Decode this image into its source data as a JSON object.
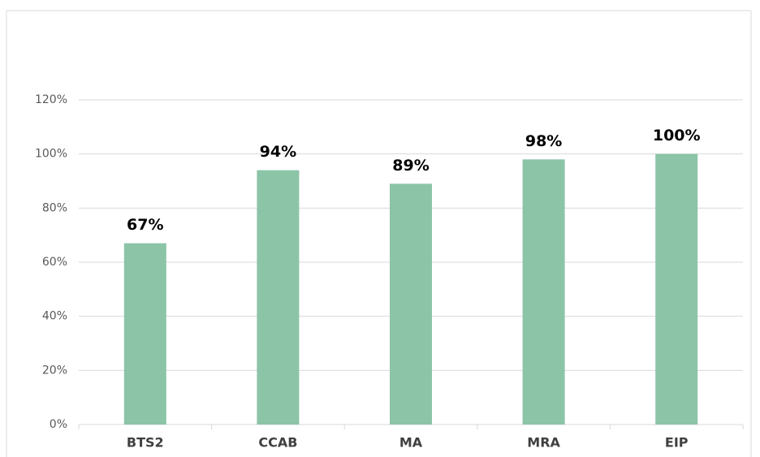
{
  "chart_data": {
    "type": "bar",
    "categories": [
      "BTS2",
      "CCAB",
      "MA",
      "MRA",
      "EIP"
    ],
    "values": [
      67,
      94,
      89,
      98,
      100
    ],
    "value_labels": [
      "67%",
      "94%",
      "89%",
      "98%",
      "100%"
    ],
    "color": "#8cc4a7",
    "ylim": [
      0,
      120
    ],
    "yticks": [
      {
        "value": 0,
        "label": "0%"
      },
      {
        "value": 20,
        "label": "20%"
      },
      {
        "value": 40,
        "label": "40%"
      },
      {
        "value": 60,
        "label": "60%"
      },
      {
        "value": 80,
        "label": "80%"
      },
      {
        "value": 100,
        "label": "100%"
      },
      {
        "value": 120,
        "label": "120%"
      }
    ],
    "grid": true
  }
}
